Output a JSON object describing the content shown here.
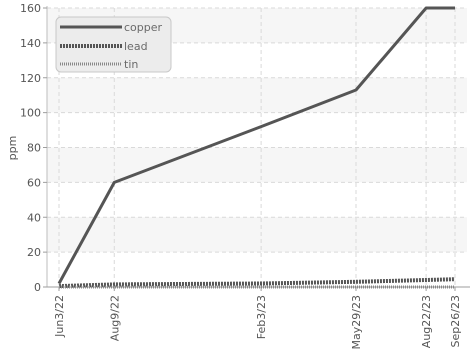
{
  "chart_data": {
    "type": "line",
    "xlabel": "",
    "ylabel": "ppm",
    "ylim": [
      0,
      160
    ],
    "yticks": [
      0,
      20,
      40,
      60,
      80,
      100,
      120,
      140,
      160
    ],
    "x_tick_labels": [
      "Jun3/22",
      "Aug9/22",
      "Feb3/23",
      "May29/23",
      "Aug22/23",
      "Sep26/23"
    ],
    "x_dates": [
      "2022-06-03",
      "2022-08-09",
      "2023-02-03",
      "2023-05-29",
      "2023-08-22",
      "2023-09-26"
    ],
    "grid": true,
    "legend_position": "top-left",
    "series": [
      {
        "name": "copper",
        "color": "#555555",
        "style": "solid",
        "values": [
          2,
          60,
          92,
          113,
          160,
          160
        ]
      },
      {
        "name": "lead",
        "color": "#555555",
        "style": "dashed",
        "values": [
          0.5,
          1.5,
          2,
          3,
          4,
          4.5
        ]
      },
      {
        "name": "tin",
        "color": "#888888",
        "style": "dotted",
        "values": [
          0,
          0,
          0,
          0,
          0,
          0
        ]
      }
    ]
  }
}
